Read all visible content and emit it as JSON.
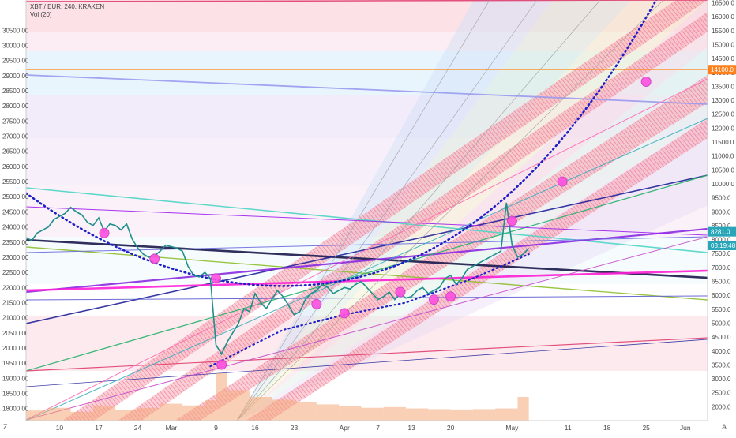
{
  "header": {
    "symbol": "XBT / EUR, 240, KRAKEN",
    "volume_label": "Vol (20)"
  },
  "chart_data": {
    "type": "line",
    "title": "XBT / EUR, 240, KRAKEN",
    "left_axis": {
      "unit": "USD-like",
      "ylim": [
        17600,
        31500
      ],
      "ticks": [
        18000,
        18500,
        19000,
        19500,
        20000,
        20500,
        21000,
        21500,
        22000,
        22500,
        23000,
        23500,
        24000,
        24500,
        25000,
        25500,
        26000,
        26500,
        27000,
        27500,
        28000,
        28500,
        29000,
        29500,
        30000,
        30500
      ],
      "tick_labels": [
        "18000.00",
        "18500.00",
        "19000.00",
        "19500.00",
        "20000.00",
        "20500.00",
        "21000.00",
        "21500.00",
        "22000.00",
        "22500.00",
        "23000.00",
        "23500.00",
        "24000.00",
        "24500.00",
        "25000.00",
        "25500.00",
        "26000.00",
        "26500.00",
        "27000.00",
        "27500.00",
        "28000.00",
        "28500.00",
        "29000.00",
        "29500.00",
        "30000.00",
        "30500.00"
      ]
    },
    "right_axis": {
      "ylim": [
        1500,
        16600
      ],
      "ticks": [
        2000,
        2500,
        3000,
        3500,
        4000,
        4500,
        5000,
        5500,
        6000,
        6500,
        7000,
        7500,
        8000,
        8500,
        9000,
        9500,
        10000,
        10500,
        11000,
        11500,
        12000,
        12500,
        13000,
        13500,
        14000,
        14500,
        15000,
        15500,
        16000,
        16500
      ],
      "tick_labels": [
        "2000.0",
        "2500.0",
        "3000.0",
        "3500.0",
        "4000.0",
        "4500.0",
        "5000.0",
        "5500.0",
        "6000.0",
        "6500.0",
        "7000.0",
        "7500.0",
        "8000.0",
        "8500.0",
        "9000.0",
        "9500.0",
        "10000.0",
        "10500.0",
        "11000.0",
        "11500.0",
        "12000.0",
        "12500.0",
        "13000.0",
        "13500.0",
        "14000.0",
        "14500.0",
        "15000.0",
        "15500.0",
        "16000.0",
        "16500.0"
      ],
      "badges": [
        {
          "label": "14100.0",
          "value": 14100,
          "color": "#ff7f1a"
        },
        {
          "label": "8281.0",
          "value": 8281,
          "color": "#26a6b8"
        },
        {
          "label": "03:19:48",
          "value": 7790,
          "color": "#26a6b8"
        }
      ]
    },
    "x_axis": {
      "ticks": [
        {
          "label": "10",
          "day": 10
        },
        {
          "label": "17",
          "day": 17
        },
        {
          "label": "24",
          "day": 24
        },
        {
          "label": "Mar",
          "day": 30
        },
        {
          "label": "9",
          "day": 38
        },
        {
          "label": "16",
          "day": 45
        },
        {
          "label": "23",
          "day": 52
        },
        {
          "label": "Apr",
          "day": 61
        },
        {
          "label": "7",
          "day": 67
        },
        {
          "label": "13",
          "day": 73
        },
        {
          "label": "20",
          "day": 80
        },
        {
          "label": "May",
          "day": 91
        },
        {
          "label": "11",
          "day": 101
        },
        {
          "label": "18",
          "day": 108
        },
        {
          "label": "25",
          "day": 115
        },
        {
          "label": "Jun",
          "day": 122
        }
      ],
      "range_days": [
        4,
        126
      ]
    },
    "price_series": {
      "day": [
        4,
        5,
        6,
        7,
        8,
        9,
        10,
        11,
        12,
        13,
        14,
        15,
        16,
        17,
        18,
        19,
        20,
        21,
        22,
        23,
        24,
        25,
        26,
        27,
        28,
        29,
        30,
        31,
        32,
        33,
        34,
        35,
        36,
        37,
        38,
        39,
        40,
        41,
        42,
        43,
        44,
        45,
        46,
        47,
        48,
        49,
        50,
        51,
        52,
        53,
        54,
        55,
        56,
        57,
        58,
        59,
        60,
        61,
        62,
        63,
        64,
        65,
        66,
        67,
        68,
        69,
        70,
        71,
        72,
        73,
        74,
        75,
        76,
        77,
        78,
        79,
        80,
        81,
        82,
        83,
        84,
        85,
        86,
        87,
        88,
        89,
        90,
        91,
        92,
        93,
        94
      ],
      "close": [
        23650,
        23550,
        23800,
        23900,
        24000,
        24250,
        24350,
        24450,
        24650,
        24500,
        24400,
        24150,
        24050,
        24300,
        23850,
        24100,
        24050,
        23900,
        24100,
        23600,
        23300,
        23100,
        23000,
        23050,
        23200,
        23400,
        23350,
        23300,
        23200,
        22700,
        22400,
        22350,
        22500,
        22300,
        20100,
        19800,
        20200,
        20500,
        20800,
        21300,
        21200,
        21800,
        21500,
        21300,
        21600,
        21900,
        21700,
        21400,
        21100,
        21200,
        21600,
        21800,
        21900,
        22100,
        22000,
        21800,
        21900,
        22000,
        21950,
        22100,
        22200,
        22000,
        21800,
        21600,
        21700,
        21850,
        21600,
        21800,
        21650,
        21700,
        21900,
        22000,
        21800,
        21900,
        22000,
        22300,
        22400,
        22100,
        22300,
        22600,
        22700,
        22800,
        22900,
        23000,
        23100,
        23200,
        24800,
        23400,
        23000,
        23100,
        23300
      ]
    },
    "volume_series": {
      "day": [
        4,
        8,
        12,
        16,
        20,
        24,
        28,
        32,
        36,
        38,
        40,
        44,
        48,
        52,
        56,
        60,
        64,
        68,
        72,
        76,
        80,
        84,
        88,
        92,
        94
      ],
      "volume": [
        300,
        380,
        260,
        420,
        320,
        380,
        500,
        450,
        600,
        1400,
        900,
        700,
        620,
        560,
        480,
        420,
        380,
        400,
        360,
        340,
        330,
        340,
        360,
        700,
        520
      ]
    },
    "curve_markers_day": [
      18,
      27,
      37,
      38,
      61,
      58,
      71,
      74,
      78,
      91,
      98,
      112
    ],
    "horizontal_levels": [
      {
        "name": "14100 level",
        "value_right": 14100,
        "color": "#ff8c1a"
      }
    ],
    "grid": false
  }
}
